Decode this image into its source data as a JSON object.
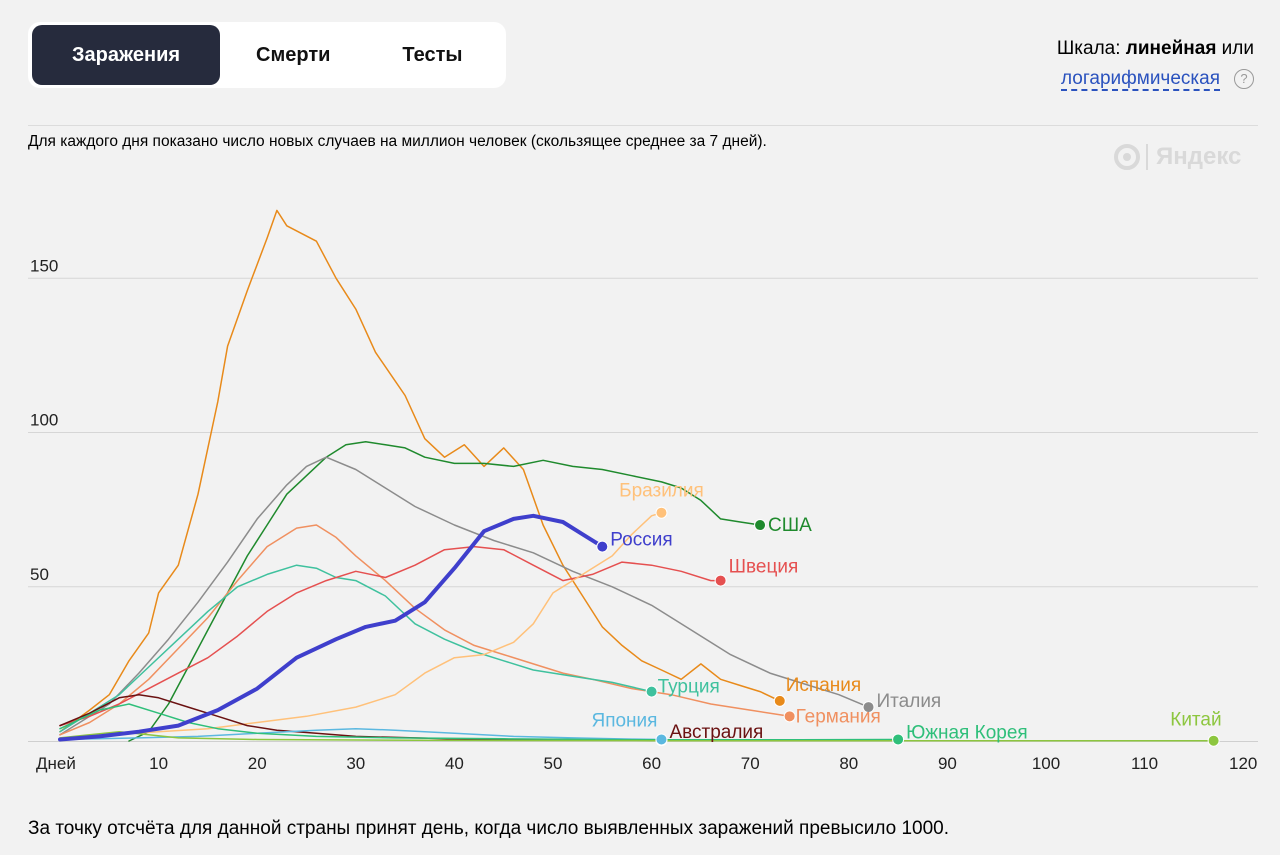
{
  "tabs": [
    {
      "label": "Заражения",
      "active": true
    },
    {
      "label": "Смерти",
      "active": false
    },
    {
      "label": "Тесты",
      "active": false
    }
  ],
  "scale": {
    "prefix": "Шкала: ",
    "linear": "линейная",
    "or": " или",
    "log": "логарифмическая",
    "help": "?"
  },
  "description": "Для каждого дня показано число новых случаев на миллион человек (скользящее среднее за 7 дней).",
  "footnote": "За точку отсчёта для данной страны принят день, когда число выявленных заражений превысило 1000.",
  "logo_text": "Яндекс",
  "chart_data": {
    "type": "line",
    "xlabel": "Дней",
    "x_ticks": [
      10,
      20,
      30,
      40,
      50,
      60,
      70,
      80,
      90,
      100,
      110,
      120
    ],
    "y_ticks": [
      50,
      100,
      150
    ],
    "xlim": [
      0,
      120
    ],
    "ylim": [
      0,
      175
    ],
    "grid": true,
    "series": [
      {
        "name": "Испания",
        "color": "#e88a1a",
        "width": 1.5,
        "label_color": "#e88a1a",
        "points": [
          [
            0,
            3
          ],
          [
            3,
            10
          ],
          [
            5,
            15
          ],
          [
            7,
            26
          ],
          [
            9,
            35
          ],
          [
            10,
            48
          ],
          [
            12,
            57
          ],
          [
            14,
            80
          ],
          [
            16,
            110
          ],
          [
            17,
            128
          ],
          [
            19,
            146
          ],
          [
            21,
            163
          ],
          [
            22,
            172
          ],
          [
            23,
            167
          ],
          [
            26,
            162
          ],
          [
            28,
            150
          ],
          [
            30,
            140
          ],
          [
            32,
            126
          ],
          [
            35,
            112
          ],
          [
            37,
            98
          ],
          [
            39,
            92
          ],
          [
            41,
            96
          ],
          [
            43,
            89
          ],
          [
            45,
            95
          ],
          [
            47,
            88
          ],
          [
            49,
            70
          ],
          [
            51,
            57
          ],
          [
            53,
            47
          ],
          [
            55,
            37
          ],
          [
            57,
            31
          ],
          [
            59,
            26
          ],
          [
            61,
            23
          ],
          [
            63,
            20
          ],
          [
            65,
            25
          ],
          [
            67,
            20
          ],
          [
            69,
            18
          ],
          [
            71,
            16
          ],
          [
            73,
            13
          ]
        ]
      },
      {
        "name": "США",
        "color": "#1f8a2d",
        "width": 1.5,
        "label_color": "#1f8a2d",
        "points": [
          [
            7,
            0
          ],
          [
            9,
            3
          ],
          [
            11,
            12
          ],
          [
            13,
            24
          ],
          [
            15,
            36
          ],
          [
            17,
            48
          ],
          [
            19,
            60
          ],
          [
            21,
            70
          ],
          [
            23,
            80
          ],
          [
            25,
            86
          ],
          [
            27,
            92
          ],
          [
            29,
            96
          ],
          [
            31,
            97
          ],
          [
            33,
            96
          ],
          [
            35,
            95
          ],
          [
            37,
            92
          ],
          [
            40,
            90
          ],
          [
            43,
            90
          ],
          [
            46,
            89
          ],
          [
            49,
            91
          ],
          [
            52,
            89
          ],
          [
            55,
            88
          ],
          [
            58,
            86
          ],
          [
            61,
            84
          ],
          [
            63,
            82
          ],
          [
            65,
            78
          ],
          [
            67,
            72
          ],
          [
            69,
            71
          ],
          [
            71,
            70
          ]
        ]
      },
      {
        "name": "Италия",
        "color": "#8c8c8c",
        "width": 1.5,
        "label_color": "#8c8c8c",
        "points": [
          [
            0,
            2
          ],
          [
            2,
            6
          ],
          [
            5,
            12
          ],
          [
            8,
            22
          ],
          [
            11,
            33
          ],
          [
            14,
            45
          ],
          [
            17,
            58
          ],
          [
            20,
            72
          ],
          [
            23,
            83
          ],
          [
            25,
            89
          ],
          [
            27,
            92
          ],
          [
            30,
            88
          ],
          [
            33,
            82
          ],
          [
            36,
            76
          ],
          [
            40,
            70
          ],
          [
            44,
            65
          ],
          [
            48,
            61
          ],
          [
            52,
            55
          ],
          [
            56,
            50
          ],
          [
            60,
            44
          ],
          [
            64,
            36
          ],
          [
            68,
            28
          ],
          [
            72,
            22
          ],
          [
            76,
            18
          ],
          [
            79,
            15
          ],
          [
            82,
            11
          ]
        ]
      },
      {
        "name": "Германия",
        "color": "#f09060",
        "width": 1.5,
        "label_color": "#f09060",
        "points": [
          [
            0,
            2
          ],
          [
            3,
            6
          ],
          [
            6,
            12
          ],
          [
            9,
            20
          ],
          [
            12,
            30
          ],
          [
            15,
            40
          ],
          [
            18,
            52
          ],
          [
            21,
            63
          ],
          [
            24,
            69
          ],
          [
            26,
            70
          ],
          [
            28,
            66
          ],
          [
            30,
            60
          ],
          [
            33,
            52
          ],
          [
            36,
            43
          ],
          [
            39,
            36
          ],
          [
            42,
            31
          ],
          [
            45,
            28
          ],
          [
            48,
            25
          ],
          [
            51,
            22
          ],
          [
            54,
            20
          ],
          [
            58,
            17
          ],
          [
            62,
            15
          ],
          [
            66,
            12
          ],
          [
            70,
            10
          ],
          [
            74,
            8
          ]
        ]
      },
      {
        "name": "Турция",
        "color": "#3fc19e",
        "width": 1.5,
        "label_color": "#3fc19e",
        "points": [
          [
            0,
            3
          ],
          [
            3,
            9
          ],
          [
            6,
            15
          ],
          [
            9,
            24
          ],
          [
            12,
            33
          ],
          [
            15,
            42
          ],
          [
            18,
            50
          ],
          [
            21,
            54
          ],
          [
            24,
            57
          ],
          [
            26,
            56
          ],
          [
            28,
            53
          ],
          [
            30,
            52
          ],
          [
            33,
            47
          ],
          [
            36,
            38
          ],
          [
            39,
            33
          ],
          [
            42,
            29
          ],
          [
            45,
            26
          ],
          [
            48,
            23
          ],
          [
            52,
            21
          ],
          [
            56,
            19
          ],
          [
            60,
            16
          ]
        ]
      },
      {
        "name": "Швеция",
        "color": "#e55050",
        "width": 1.5,
        "label_color": "#e55050",
        "points": [
          [
            0,
            5
          ],
          [
            3,
            8
          ],
          [
            6,
            12
          ],
          [
            9,
            17
          ],
          [
            12,
            22
          ],
          [
            15,
            27
          ],
          [
            18,
            34
          ],
          [
            21,
            42
          ],
          [
            24,
            48
          ],
          [
            27,
            52
          ],
          [
            30,
            55
          ],
          [
            33,
            53
          ],
          [
            36,
            57
          ],
          [
            39,
            62
          ],
          [
            42,
            63
          ],
          [
            45,
            62
          ],
          [
            48,
            57
          ],
          [
            51,
            52
          ],
          [
            54,
            54
          ],
          [
            57,
            58
          ],
          [
            60,
            57
          ],
          [
            63,
            55
          ],
          [
            66,
            52
          ],
          [
            67,
            52
          ]
        ]
      },
      {
        "name": "Бразилия",
        "color": "#ffc17a",
        "width": 1.5,
        "label_color": "#ffc17a",
        "points": [
          [
            0,
            1
          ],
          [
            5,
            2
          ],
          [
            10,
            3
          ],
          [
            15,
            4
          ],
          [
            20,
            6
          ],
          [
            25,
            8
          ],
          [
            30,
            11
          ],
          [
            34,
            15
          ],
          [
            37,
            22
          ],
          [
            40,
            27
          ],
          [
            43,
            28
          ],
          [
            46,
            32
          ],
          [
            48,
            38
          ],
          [
            50,
            48
          ],
          [
            52,
            52
          ],
          [
            54,
            56
          ],
          [
            56,
            60
          ],
          [
            58,
            67
          ],
          [
            60,
            73
          ],
          [
            61,
            74
          ]
        ]
      },
      {
        "name": "Россия",
        "color": "#3f3fcc",
        "width": 4,
        "label_color": "#3f3fcc",
        "points": [
          [
            0,
            0.5
          ],
          [
            4,
            1.5
          ],
          [
            8,
            3
          ],
          [
            12,
            5
          ],
          [
            16,
            10
          ],
          [
            20,
            17
          ],
          [
            24,
            27
          ],
          [
            28,
            33
          ],
          [
            31,
            37
          ],
          [
            34,
            39
          ],
          [
            37,
            45
          ],
          [
            40,
            56
          ],
          [
            43,
            68
          ],
          [
            46,
            72
          ],
          [
            48,
            73
          ],
          [
            51,
            71
          ],
          [
            53,
            67
          ],
          [
            55,
            63
          ]
        ]
      },
      {
        "name": "Австралия",
        "color": "#6a1111",
        "width": 1.5,
        "label_color": "#6a1111",
        "points": [
          [
            0,
            5
          ],
          [
            3,
            9
          ],
          [
            6,
            14
          ],
          [
            8,
            15
          ],
          [
            10,
            14
          ],
          [
            13,
            11
          ],
          [
            16,
            8
          ],
          [
            19,
            5
          ],
          [
            22,
            3.5
          ],
          [
            26,
            2.5
          ],
          [
            30,
            1.5
          ],
          [
            36,
            1
          ],
          [
            42,
            0.5
          ],
          [
            50,
            0.4
          ],
          [
            58,
            0.3
          ],
          [
            61,
            0.3
          ]
        ]
      },
      {
        "name": "Япония",
        "color": "#5bb8e0",
        "width": 1.5,
        "label_color": "#5bb8e0",
        "points": [
          [
            0,
            0.5
          ],
          [
            8,
            1
          ],
          [
            14,
            1.5
          ],
          [
            20,
            2.5
          ],
          [
            26,
            3.5
          ],
          [
            30,
            4
          ],
          [
            34,
            3.5
          ],
          [
            40,
            2.5
          ],
          [
            46,
            1.5
          ],
          [
            52,
            1
          ],
          [
            58,
            0.6
          ],
          [
            61,
            0.5
          ]
        ]
      },
      {
        "name": "Южная Корея",
        "color": "#2fbf7a",
        "width": 1.5,
        "label_color": "#2fbf7a",
        "points": [
          [
            0,
            4
          ],
          [
            4,
            10
          ],
          [
            7,
            12
          ],
          [
            10,
            9
          ],
          [
            13,
            6
          ],
          [
            16,
            4
          ],
          [
            20,
            2.5
          ],
          [
            26,
            1.5
          ],
          [
            34,
            1
          ],
          [
            45,
            0.7
          ],
          [
            60,
            0.4
          ],
          [
            75,
            0.4
          ],
          [
            85,
            0.5
          ]
        ]
      },
      {
        "name": "Китай",
        "color": "#8dc63f",
        "width": 1.5,
        "label_color": "#8dc63f",
        "points": [
          [
            0,
            1
          ],
          [
            3,
            2
          ],
          [
            6,
            3
          ],
          [
            9,
            2
          ],
          [
            12,
            1
          ],
          [
            20,
            0.5
          ],
          [
            40,
            0.2
          ],
          [
            60,
            0.1
          ],
          [
            80,
            0.1
          ],
          [
            100,
            0.1
          ],
          [
            117,
            0.1
          ]
        ]
      }
    ]
  }
}
